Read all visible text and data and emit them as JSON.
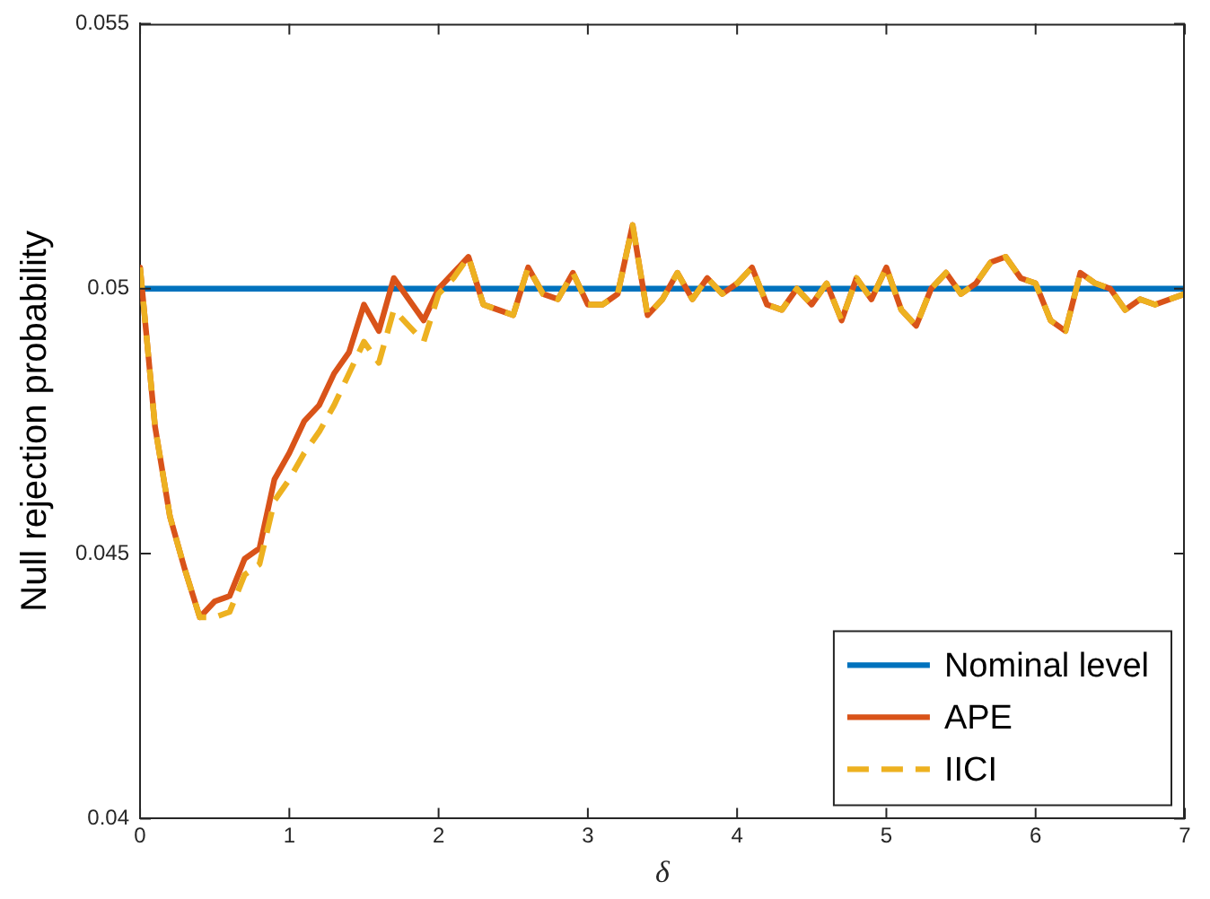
{
  "chart_data": {
    "type": "line",
    "xlabel": "δ",
    "ylabel": "Null rejection probability",
    "x": [
      0,
      0.1,
      0.2,
      0.3,
      0.4,
      0.5,
      0.6,
      0.7,
      0.8,
      0.9,
      1,
      1.1,
      1.2,
      1.3,
      1.4,
      1.5,
      1.6,
      1.7,
      1.8,
      1.9,
      2,
      2.1,
      2.2,
      2.3,
      2.4,
      2.5,
      2.6,
      2.7,
      2.8,
      2.9,
      3,
      3.1,
      3.2,
      3.3,
      3.4,
      3.5,
      3.6,
      3.7,
      3.8,
      3.9,
      4,
      4.1,
      4.2,
      4.3,
      4.4,
      4.5,
      4.6,
      4.7,
      4.8,
      4.9,
      5,
      5.1,
      5.2,
      5.3,
      5.4,
      5.5,
      5.6,
      5.7,
      5.8,
      5.9,
      6,
      6.1,
      6.2,
      6.3,
      6.4,
      6.5,
      6.6,
      6.7,
      6.8,
      6.9,
      7
    ],
    "series": [
      {
        "name": "Nominal level",
        "color": "#0072bd",
        "x": [
          0,
          7
        ],
        "values": [
          0.05,
          0.05
        ],
        "line_style": "solid"
      },
      {
        "name": "APE",
        "color": "#d95319",
        "line_style": "solid",
        "values": [
          0.0504,
          0.0474,
          0.0457,
          0.0447,
          0.0438,
          0.0441,
          0.0442,
          0.0449,
          0.0451,
          0.0464,
          0.0469,
          0.0475,
          0.0478,
          0.0484,
          0.0488,
          0.0497,
          0.0492,
          0.0502,
          0.0498,
          0.0494,
          0.05,
          0.0503,
          0.0506,
          0.0497,
          0.0496,
          0.0495,
          0.0504,
          0.0499,
          0.0498,
          0.0503,
          0.0497,
          0.0497,
          0.0499,
          0.0512,
          0.0495,
          0.0498,
          0.0503,
          0.0498,
          0.0502,
          0.0499,
          0.0501,
          0.0504,
          0.0497,
          0.0496,
          0.05,
          0.0497,
          0.0501,
          0.0494,
          0.0502,
          0.0498,
          0.0504,
          0.0496,
          0.0493,
          0.05,
          0.0503,
          0.0499,
          0.0501,
          0.0505,
          0.0506,
          0.0502,
          0.0501,
          0.0494,
          0.0492,
          0.0503,
          0.0501,
          0.05,
          0.0496,
          0.0498,
          0.0497,
          0.0498,
          0.0499
        ]
      },
      {
        "name": "IICI",
        "color": "#edb120",
        "line_style": "dashed",
        "values": [
          0.0504,
          0.0474,
          0.0457,
          0.0447,
          0.0438,
          0.0438,
          0.0439,
          0.0446,
          0.0448,
          0.046,
          0.0464,
          0.0469,
          0.0473,
          0.0478,
          0.0484,
          0.049,
          0.0486,
          0.0496,
          0.0493,
          0.049,
          0.0499,
          0.0502,
          0.0506,
          0.0497,
          0.0496,
          0.0495,
          0.0504,
          0.0499,
          0.0498,
          0.0503,
          0.0497,
          0.0497,
          0.0499,
          0.0512,
          0.0495,
          0.0498,
          0.0503,
          0.0498,
          0.0502,
          0.0499,
          0.0501,
          0.0504,
          0.0497,
          0.0496,
          0.05,
          0.0497,
          0.0501,
          0.0494,
          0.0502,
          0.0498,
          0.0504,
          0.0496,
          0.0493,
          0.05,
          0.0503,
          0.0499,
          0.0501,
          0.0505,
          0.0506,
          0.0502,
          0.0501,
          0.0494,
          0.0492,
          0.0503,
          0.0501,
          0.05,
          0.0496,
          0.0498,
          0.0497,
          0.0498,
          0.0499
        ]
      }
    ],
    "xlim": [
      0,
      7
    ],
    "xticks": [
      0,
      1,
      2,
      3,
      4,
      5,
      6,
      7
    ],
    "ylim": [
      0.04,
      0.055
    ],
    "yticks": [
      0.04,
      0.045,
      0.05,
      0.055
    ],
    "grid": false,
    "legend": "bottom right",
    "marker": "none"
  }
}
